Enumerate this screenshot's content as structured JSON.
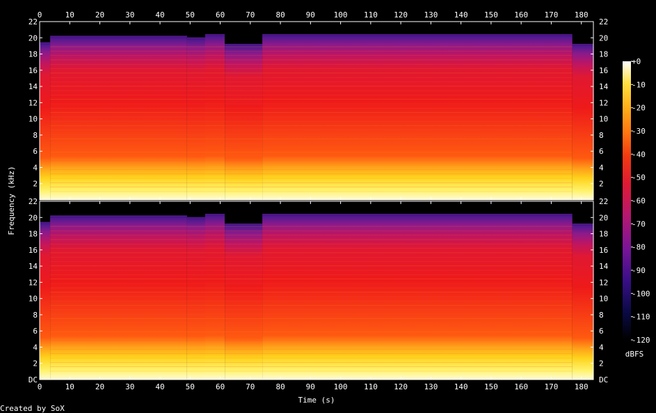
{
  "chart_data": {
    "type": "heatmap",
    "subtype": "spectrogram",
    "channels": 2,
    "xlabel": "Time (s)",
    "ylabel": "Frequency (kHz)",
    "xlim": [
      0,
      184
    ],
    "ylim": [
      0,
      22
    ],
    "x_ticks": [
      "0",
      "10",
      "20",
      "30",
      "40",
      "50",
      "60",
      "70",
      "80",
      "90",
      "100",
      "110",
      "120",
      "130",
      "140",
      "150",
      "160",
      "170",
      "180"
    ],
    "x_tick_values": [
      0,
      10,
      20,
      30,
      40,
      50,
      60,
      70,
      80,
      90,
      100,
      110,
      120,
      130,
      140,
      150,
      160,
      170,
      180
    ],
    "y_ticks": [
      "DC",
      "2",
      "4",
      "6",
      "8",
      "10",
      "12",
      "14",
      "16",
      "18",
      "20",
      "22"
    ],
    "y_tick_values": [
      0,
      2,
      4,
      6,
      8,
      10,
      12,
      14,
      16,
      18,
      20,
      22
    ],
    "colorbar": {
      "label": "dBFS",
      "ticks": [
        "+0",
        "-10",
        "-20",
        "-30",
        "-40",
        "-50",
        "-60",
        "-70",
        "-80",
        "-90",
        "-100",
        "-110",
        "-120"
      ],
      "tick_values": [
        0,
        -10,
        -20,
        -30,
        -40,
        -50,
        -60,
        -70,
        -80,
        -90,
        -100,
        -110,
        -120
      ],
      "range": [
        -120,
        0
      ]
    },
    "segments": [
      {
        "start": 0,
        "end": 3.5,
        "cutoff_khz": 19.2
      },
      {
        "start": 3.5,
        "end": 49,
        "cutoff_khz": 20.0
      },
      {
        "start": 49,
        "end": 55,
        "cutoff_khz": 19.8
      },
      {
        "start": 55,
        "end": 61.5,
        "cutoff_khz": 20.2
      },
      {
        "start": 61.5,
        "end": 74,
        "cutoff_khz": 19.0
      },
      {
        "start": 74,
        "end": 177,
        "cutoff_khz": 20.2
      },
      {
        "start": 177,
        "end": 184,
        "cutoff_khz": 19.0
      }
    ],
    "colors": {
      "background": "#000000",
      "text": "#ffffff"
    }
  },
  "footer": {
    "credit": "Created by SoX"
  }
}
